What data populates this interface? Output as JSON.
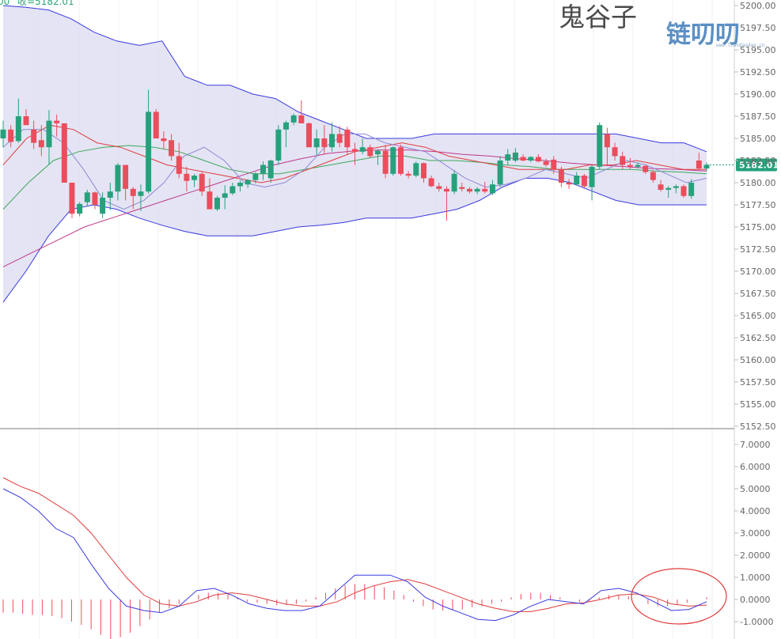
{
  "header": {
    "fragment_left": "00",
    "close_label_text": "收=5182.01"
  },
  "author": "鬼谷子",
  "logo": {
    "main": "链叨叨",
    "sub": "www.liandaodao.cn"
  },
  "colors": {
    "up": "#26a17b",
    "down": "#eb4d5c",
    "band_fill": "#d9d9f0",
    "band_line": "#3a3ae0",
    "ma_fast": "#8e8ad6",
    "ma_mid": "#e03c3c",
    "ma_slow": "#3ea85a",
    "ma_long": "#c0398a",
    "macd_dif": "#3a3ae0",
    "macd_dea": "#e03c3c",
    "price_tag": "#26a17b",
    "annotation": "#e03c3c"
  },
  "chart_data": [
    {
      "type": "candlestick",
      "ylim": [
        5152.5,
        5200.0
      ],
      "ytick_labels": [
        "5200.00",
        "5197.50",
        "5195.00",
        "5192.50",
        "5190.00",
        "5187.50",
        "5185.00",
        "5182.50",
        "5180.00",
        "5177.50",
        "5175.00",
        "5172.50",
        "5170.00",
        "5167.50",
        "5165.00",
        "5162.50",
        "5160.00",
        "5157.50",
        "5155.00",
        "5152.50"
      ],
      "last_price": "5182.01",
      "candles": [
        [
          5185.0,
          5187.0,
          5184.0,
          5186.0
        ],
        [
          5186.0,
          5186.5,
          5184.0,
          5184.6
        ],
        [
          5184.7,
          5189.5,
          5184.5,
          5187.5
        ],
        [
          5187.5,
          5188.3,
          5186.5,
          5186.5
        ],
        [
          5186.0,
          5187.0,
          5183.8,
          5184.5
        ],
        [
          5184.8,
          5186.5,
          5183.0,
          5184.0
        ],
        [
          5184.0,
          5188.2,
          5182.0,
          5187.0
        ],
        [
          5187.0,
          5187.7,
          5185.2,
          5186.7
        ],
        [
          5186.7,
          5186.7,
          5180.0,
          5180.0
        ],
        [
          5180.0,
          5180.0,
          5176.0,
          5176.5
        ],
        [
          5176.5,
          5177.8,
          5176.2,
          5177.6
        ],
        [
          5177.8,
          5179.2,
          5177.3,
          5178.9
        ],
        [
          5178.9,
          5179.0,
          5177.0,
          5177.5
        ],
        [
          5176.5,
          5178.9,
          5176.0,
          5178.3
        ],
        [
          5178.3,
          5180.0,
          5176.9,
          5179.0
        ],
        [
          5179.0,
          5182.2,
          5178.0,
          5182.0
        ],
        [
          5182.0,
          5182.0,
          5178.0,
          5179.3
        ],
        [
          5179.3,
          5179.5,
          5177.0,
          5178.5
        ],
        [
          5178.5,
          5179.8,
          5176.8,
          5179.0
        ],
        [
          5179.0,
          5190.5,
          5178.8,
          5188.0
        ],
        [
          5188.0,
          5188.3,
          5185.0,
          5185.0
        ],
        [
          5185.0,
          5185.8,
          5183.8,
          5184.7
        ],
        [
          5184.8,
          5185.5,
          5182.5,
          5183.0
        ],
        [
          5183.0,
          5184.5,
          5180.5,
          5181.0
        ],
        [
          5181.0,
          5181.8,
          5179.0,
          5180.2
        ],
        [
          5180.3,
          5181.0,
          5179.5,
          5180.8
        ],
        [
          5181.0,
          5181.2,
          5178.5,
          5179.0
        ],
        [
          5179.0,
          5180.5,
          5177.0,
          5177.0
        ],
        [
          5177.0,
          5178.5,
          5176.8,
          5178.3
        ],
        [
          5178.3,
          5179.7,
          5177.0,
          5178.8
        ],
        [
          5178.8,
          5180.0,
          5178.6,
          5179.6
        ],
        [
          5179.6,
          5180.3,
          5179.0,
          5180.0
        ],
        [
          5179.8,
          5180.4,
          5179.4,
          5180.3
        ],
        [
          5180.3,
          5181.2,
          5179.9,
          5181.0
        ],
        [
          5181.0,
          5182.4,
          5180.3,
          5182.0
        ],
        [
          5180.5,
          5182.6,
          5180.0,
          5182.5
        ],
        [
          5182.5,
          5186.5,
          5182.0,
          5186.0
        ],
        [
          5186.0,
          5187.0,
          5184.0,
          5186.8
        ],
        [
          5186.8,
          5187.8,
          5186.5,
          5187.6
        ],
        [
          5187.6,
          5189.3,
          5187.0,
          5186.7
        ],
        [
          5186.7,
          5186.8,
          5184.0,
          5184.0
        ],
        [
          5184.0,
          5186.0,
          5183.0,
          5185.0
        ],
        [
          5185.0,
          5186.5,
          5183.2,
          5184.0
        ],
        [
          5184.0,
          5186.8,
          5183.5,
          5185.5
        ],
        [
          5185.5,
          5186.4,
          5184.0,
          5184.5
        ],
        [
          5186.0,
          5186.3,
          5183.2,
          5184.0
        ],
        [
          5183.8,
          5184.5,
          5182.0,
          5183.5
        ],
        [
          5183.5,
          5185.0,
          5183.2,
          5184.0
        ],
        [
          5184.0,
          5184.3,
          5182.8,
          5183.0
        ],
        [
          5183.2,
          5183.8,
          5182.0,
          5183.6
        ],
        [
          5183.6,
          5184.3,
          5180.5,
          5181.0
        ],
        [
          5181.0,
          5184.1,
          5180.8,
          5184.0
        ],
        [
          5184.0,
          5184.3,
          5180.8,
          5181.0
        ],
        [
          5181.0,
          5181.3,
          5180.5,
          5180.8
        ],
        [
          5180.8,
          5182.4,
          5180.6,
          5182.2
        ],
        [
          5182.2,
          5182.3,
          5180.0,
          5180.5
        ],
        [
          5180.5,
          5180.8,
          5179.5,
          5179.6
        ],
        [
          5179.6,
          5180.0,
          5179.0,
          5179.3
        ],
        [
          5179.3,
          5179.6,
          5175.7,
          5179.0
        ],
        [
          5179.0,
          5181.4,
          5178.7,
          5181.0
        ],
        [
          5179.5,
          5180.0,
          5179.0,
          5179.3
        ],
        [
          5179.3,
          5179.5,
          5178.8,
          5179.0
        ],
        [
          5179.0,
          5179.5,
          5178.7,
          5179.3
        ],
        [
          5179.3,
          5180.1,
          5178.8,
          5179.0
        ],
        [
          5178.8,
          5180.3,
          5178.6,
          5179.8
        ],
        [
          5179.8,
          5183.0,
          5179.5,
          5182.5
        ],
        [
          5182.5,
          5183.8,
          5182.0,
          5183.2
        ],
        [
          5182.5,
          5183.9,
          5182.3,
          5183.4
        ],
        [
          5182.9,
          5183.2,
          5182.4,
          5182.5
        ],
        [
          5182.5,
          5183.0,
          5182.3,
          5182.9
        ],
        [
          5182.9,
          5183.2,
          5182.3,
          5182.4
        ],
        [
          5182.4,
          5182.7,
          5181.8,
          5182.0
        ],
        [
          5182.6,
          5183.0,
          5181.0,
          5181.5
        ],
        [
          5181.5,
          5181.8,
          5179.5,
          5180.0
        ],
        [
          5180.0,
          5180.4,
          5179.3,
          5179.8
        ],
        [
          5179.8,
          5181.2,
          5179.7,
          5180.8
        ],
        [
          5180.8,
          5181.0,
          5179.4,
          5179.6
        ],
        [
          5179.5,
          5182.0,
          5178.0,
          5181.8
        ],
        [
          5181.8,
          5186.8,
          5181.5,
          5186.5
        ],
        [
          5185.5,
          5186.2,
          5182.0,
          5184.0
        ],
        [
          5184.0,
          5184.5,
          5182.5,
          5183.0
        ],
        [
          5183.0,
          5183.5,
          5181.5,
          5182.0
        ],
        [
          5182.0,
          5182.8,
          5181.5,
          5181.8
        ],
        [
          5181.8,
          5182.3,
          5181.6,
          5182.0
        ],
        [
          5181.9,
          5182.0,
          5181.0,
          5181.2
        ],
        [
          5181.2,
          5181.4,
          5180.0,
          5180.3
        ],
        [
          5179.8,
          5180.3,
          5179.0,
          5179.2
        ],
        [
          5179.2,
          5179.6,
          5178.3,
          5179.4
        ],
        [
          5179.4,
          5179.8,
          5178.8,
          5179.6
        ],
        [
          5179.6,
          5179.8,
          5178.3,
          5178.5
        ],
        [
          5178.5,
          5180.4,
          5178.2,
          5180.0
        ],
        [
          5182.5,
          5183.4,
          5181.4,
          5181.6
        ],
        [
          5181.6,
          5182.3,
          5181.3,
          5182.01
        ]
      ],
      "bollinger": {
        "upper": [
          5200.0,
          5199.8,
          5199.5,
          5198.5,
          5197.0,
          5196.0,
          5195.5,
          5196.0,
          5192.0,
          5191.0,
          5191.0,
          5190.0,
          5189.5,
          5188.0,
          5187.0,
          5186.0,
          5185.0,
          5185.0,
          5185.0,
          5185.5,
          5185.5,
          5185.5,
          5185.5,
          5185.5,
          5185.5,
          5185.5,
          5185.5,
          5185.5,
          5185.0,
          5184.5,
          5184.5,
          5183.5
        ],
        "lower": [
          5166.5,
          5170.0,
          5174.0,
          5177.0,
          5177.5,
          5177.0,
          5176.0,
          5175.2,
          5174.5,
          5174.0,
          5174.0,
          5174.0,
          5174.5,
          5175.0,
          5175.2,
          5175.5,
          5176.0,
          5176.0,
          5176.0,
          5176.5,
          5177.0,
          5178.0,
          5179.5,
          5180.5,
          5180.5,
          5180.0,
          5179.0,
          5178.0,
          5177.5,
          5177.5,
          5177.5,
          5177.5
        ]
      },
      "moving_averages": {
        "fast": [
          5184.0,
          5186.0,
          5186.0,
          5184.5,
          5181.5,
          5178.0,
          5177.0,
          5178.0,
          5180.0,
          5183.0,
          5184.0,
          5182.5,
          5180.0,
          5179.5,
          5180.0,
          5181.5,
          5184.0,
          5185.5,
          5185.5,
          5184.5,
          5184.0,
          5183.5,
          5182.0,
          5180.5,
          5179.5,
          5179.8,
          5180.5,
          5181.5,
          5181.0,
          5180.5,
          5181.5,
          5182.5,
          5182.0,
          5181.0,
          5180.0,
          5180.5
        ],
        "mid": [
          5182.0,
          5185.0,
          5186.5,
          5186.0,
          5184.5,
          5184.0,
          5183.0,
          5182.0,
          5181.5,
          5181.0,
          5180.5,
          5180.0,
          5180.5,
          5181.5,
          5182.5,
          5183.5,
          5184.0,
          5184.5,
          5184.0,
          5183.0,
          5182.5,
          5182.0,
          5181.5,
          5181.5,
          5181.5,
          5182.0,
          5182.0,
          5182.5,
          5182.0,
          5181.5,
          5181.5
        ],
        "slow": [
          5177.0,
          5180.0,
          5182.5,
          5183.5,
          5184.0,
          5184.2,
          5184.0,
          5183.5,
          5182.5,
          5181.5,
          5181.0,
          5181.0,
          5181.5,
          5182.0,
          5182.5,
          5183.0,
          5183.0,
          5182.5,
          5182.5,
          5182.3,
          5182.0,
          5181.8,
          5181.5,
          5181.5,
          5181.5,
          5181.5,
          5181.3,
          5181.2,
          5181.0
        ],
        "long": [
          5170.5,
          5172.0,
          5173.5,
          5175.0,
          5176.0,
          5177.0,
          5178.0,
          5179.0,
          5180.0,
          5181.0,
          5182.0,
          5182.7,
          5183.3,
          5183.6,
          5183.7,
          5183.7,
          5183.5,
          5183.2,
          5183.0,
          5182.7,
          5182.5,
          5182.2,
          5182.0,
          5181.8,
          5181.6,
          5181.5,
          5181.3
        ]
      }
    },
    {
      "type": "macd",
      "ylim": [
        -1.5,
        7.5
      ],
      "ytick_labels": [
        "7.0000",
        "6.0000",
        "5.0000",
        "4.0000",
        "3.0000",
        "2.0000",
        "1.0000",
        "0.0000",
        "-1.0000"
      ],
      "dif": [
        5.0,
        4.6,
        4.0,
        3.2,
        2.8,
        1.6,
        0.5,
        -0.3,
        -0.5,
        -0.6,
        -0.3,
        0.4,
        0.5,
        0.2,
        -0.2,
        -0.4,
        -0.5,
        -0.5,
        -0.3,
        0.4,
        1.1,
        1.1,
        1.1,
        0.8,
        0.1,
        -0.3,
        -0.6,
        -0.9,
        -0.95,
        -0.7,
        -0.3,
        0.0,
        -0.1,
        -0.2,
        0.4,
        0.5,
        0.3,
        -0.1,
        -0.5,
        -0.45,
        -0.1
      ],
      "dea": [
        5.5,
        5.1,
        4.8,
        4.3,
        3.8,
        3.0,
        2.0,
        1.0,
        0.2,
        -0.2,
        -0.3,
        -0.1,
        0.2,
        0.3,
        0.2,
        0.0,
        -0.2,
        -0.3,
        -0.3,
        -0.1,
        0.3,
        0.6,
        0.8,
        0.9,
        0.7,
        0.4,
        0.1,
        -0.2,
        -0.4,
        -0.55,
        -0.55,
        -0.4,
        -0.2,
        -0.15,
        0.0,
        0.2,
        0.25,
        0.1,
        -0.2,
        -0.3,
        -0.25
      ],
      "hist": [
        -0.6,
        -0.6,
        -0.65,
        -0.7,
        -0.7,
        -0.75,
        -0.85,
        -1.0,
        -1.15,
        -1.35,
        -1.6,
        -1.8,
        -1.7,
        -1.5,
        -1.2,
        -0.9,
        -0.6,
        -0.4,
        -0.2,
        0.0,
        0.2,
        0.3,
        0.3,
        0.25,
        0.1,
        -0.1,
        -0.15,
        -0.2,
        -0.25,
        -0.25,
        -0.2,
        -0.1,
        0.1,
        0.3,
        0.5,
        0.65,
        0.7,
        0.7,
        0.65,
        0.55,
        0.4,
        0.2,
        -0.1,
        -0.3,
        -0.45,
        -0.5,
        -0.5,
        -0.45,
        -0.35,
        -0.3,
        -0.2,
        -0.1,
        0.1,
        0.25,
        0.3,
        0.3,
        0.2,
        0.1,
        0.0,
        -0.1,
        -0.1,
        0.1,
        0.2,
        0.2,
        0.15,
        0.0,
        -0.2,
        -0.3,
        -0.3,
        -0.25,
        -0.15,
        0.0,
        0.1
      ]
    }
  ],
  "annotation": {
    "type": "ellipse",
    "target": "macd-recent-crossover"
  }
}
